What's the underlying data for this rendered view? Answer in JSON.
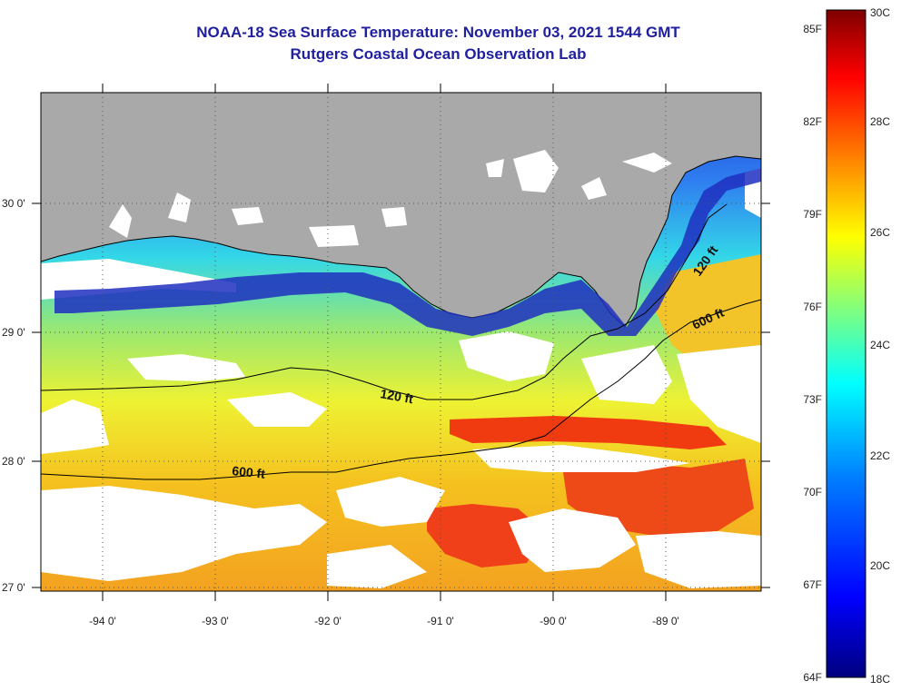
{
  "title": {
    "line1": "NOAA-18 Sea Surface Temperature:  November 03, 2021 1544 GMT",
    "line2": "Rutgers Coastal Ocean Observation Lab"
  },
  "map": {
    "longitude_labels": [
      "-94 0'",
      "-93 0'",
      "-92 0'",
      "-91 0'",
      "-90 0'",
      "-89 0'"
    ],
    "latitude_labels": [
      "30 0'",
      "29 0'",
      "28 0'",
      "27 0'"
    ],
    "isobath_labels": [
      {
        "id": "shelf-120-west",
        "text": "120 ft"
      },
      {
        "id": "shelf-120-east",
        "text": "120 ft"
      },
      {
        "id": "slope-600-west",
        "text": "600 ft"
      },
      {
        "id": "slope-600-east",
        "text": "600 ft"
      }
    ],
    "colors": {
      "land": "#a9a9a9",
      "cloud": "#ffffff",
      "contour": "#000000"
    }
  },
  "colorbar": {
    "fahrenheit_labels": [
      "85F",
      "82F",
      "79F",
      "76F",
      "73F",
      "70F",
      "67F",
      "64F"
    ],
    "celsius_labels": [
      "30C",
      "28C",
      "26C",
      "24C",
      "22C",
      "20C",
      "18C"
    ],
    "gradient": [
      "#00007f",
      "#0000ff",
      "#007fff",
      "#00ffff",
      "#7fff7f",
      "#ffff00",
      "#ff7f00",
      "#ff0000",
      "#7f0000"
    ]
  }
}
